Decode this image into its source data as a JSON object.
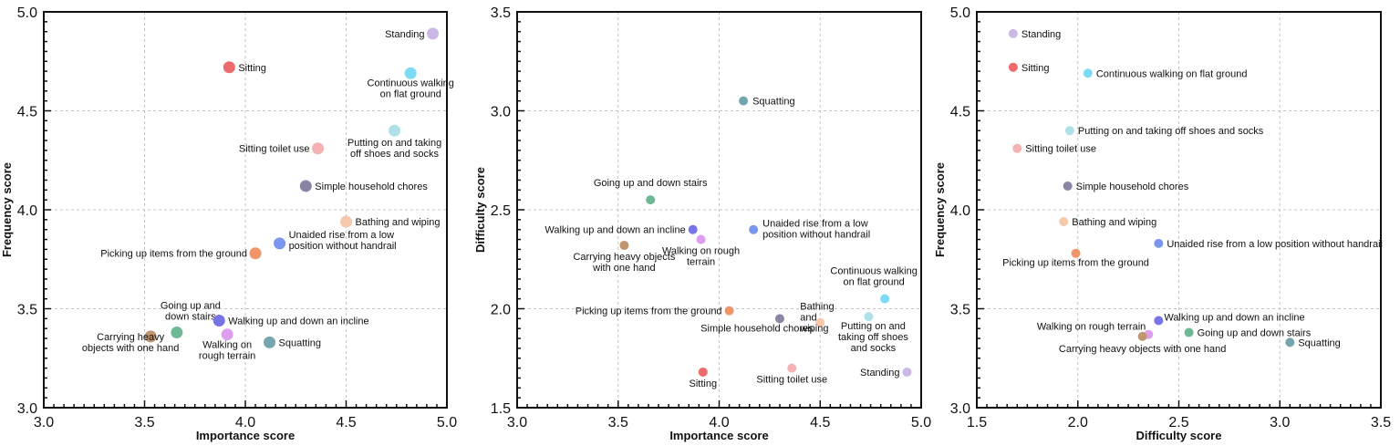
{
  "colors": {
    "Standing": "#cbb8e4",
    "Sitting": "#ef6b6b",
    "Continuous walking on flat ground": "#7ddcf4",
    "Putting on and taking off shoes and socks": "#b0e0e8",
    "Sitting toilet use": "#f5b2b2",
    "Simple household chores": "#8a85a4",
    "Bathing and wiping": "#f6c9ad",
    "Unaided rise from a low position without handrail": "#7b96ec",
    "Picking up items from the ground": "#f0956a",
    "Going up and down stairs": "#6db895",
    "Walking up and down an incline": "#7873e6",
    "Walking on rough terrain": "#de9ef0",
    "Squatting": "#75a6ad",
    "Carrying heavy objects with one hand": "#bf9670"
  },
  "chart_data": [
    {
      "type": "scatter",
      "xlabel": "Importance score",
      "ylabel": "Frequency score",
      "xlim": [
        3.0,
        5.0
      ],
      "ylim": [
        3.0,
        5.0
      ],
      "xticks": [
        "3.0",
        "3.5",
        "4.0",
        "4.5",
        "5.0"
      ],
      "yticks": [
        "3.0",
        "3.5",
        "4.0",
        "4.5",
        "5.0"
      ],
      "grid": true,
      "points": [
        {
          "item": "Standing",
          "label_lines": [
            "Standing"
          ],
          "x": 4.93,
          "y": 4.89
        },
        {
          "item": "Sitting",
          "label_lines": [
            "Sitting"
          ],
          "x": 3.92,
          "y": 4.72
        },
        {
          "item": "Continuous walking on flat ground",
          "label_lines": [
            "Continuous walking",
            "on flat ground"
          ],
          "x": 4.82,
          "y": 4.69
        },
        {
          "item": "Putting on and taking off shoes and socks",
          "label_lines": [
            "Putting on and taking",
            "off shoes and socks"
          ],
          "x": 4.74,
          "y": 4.4
        },
        {
          "item": "Sitting toilet use",
          "label_lines": [
            "Sitting toilet use"
          ],
          "x": 4.36,
          "y": 4.31
        },
        {
          "item": "Simple household chores",
          "label_lines": [
            "Simple household chores"
          ],
          "x": 4.3,
          "y": 4.12
        },
        {
          "item": "Bathing and wiping",
          "label_lines": [
            "Bathing and wiping"
          ],
          "x": 4.5,
          "y": 3.94
        },
        {
          "item": "Unaided rise from a low position without handrail",
          "label_lines": [
            "Unaided rise from a low",
            "position without handrail"
          ],
          "x": 4.17,
          "y": 3.83
        },
        {
          "item": "Picking up items from the ground",
          "label_lines": [
            "Picking up items from the ground"
          ],
          "x": 4.05,
          "y": 3.78
        },
        {
          "item": "Going up and down stairs",
          "label_lines": [
            "Going up and",
            "down stairs"
          ],
          "x": 3.66,
          "y": 3.38
        },
        {
          "item": "Walking up and down an incline",
          "label_lines": [
            "Walking up and down an incline"
          ],
          "x": 3.87,
          "y": 3.44
        },
        {
          "item": "Walking on rough terrain",
          "label_lines": [
            "Walking on",
            "rough terrain"
          ],
          "x": 3.91,
          "y": 3.37
        },
        {
          "item": "Squatting",
          "label_lines": [
            "Squatting"
          ],
          "x": 4.12,
          "y": 3.33
        },
        {
          "item": "Carrying heavy objects with one hand",
          "label_lines": [
            "Carrying heavy",
            "objects with one hand"
          ],
          "x": 3.53,
          "y": 3.36
        }
      ]
    },
    {
      "type": "scatter",
      "xlabel": "Importance score",
      "ylabel": "Difficulty score",
      "xlim": [
        3.0,
        5.0
      ],
      "ylim": [
        1.5,
        3.5
      ],
      "xticks": [
        "3.0",
        "3.5",
        "4.0",
        "4.5",
        "5.0"
      ],
      "yticks": [
        "1.5",
        "2.0",
        "2.5",
        "3.0",
        "3.5"
      ],
      "grid": true,
      "points": [
        {
          "item": "Squatting",
          "label_lines": [
            "Squatting"
          ],
          "x": 4.12,
          "y": 3.05
        },
        {
          "item": "Going up and down stairs",
          "label_lines": [
            "Going up and down stairs"
          ],
          "x": 3.66,
          "y": 2.55
        },
        {
          "item": "Walking up and down an incline",
          "label_lines": [
            "Walking up and down an incline"
          ],
          "x": 3.87,
          "y": 2.4
        },
        {
          "item": "Unaided rise from a low position without handrail",
          "label_lines": [
            "Unaided rise from a low",
            "position without handrail"
          ],
          "x": 4.17,
          "y": 2.4
        },
        {
          "item": "Walking on rough terrain",
          "label_lines": [
            "Walking on rough",
            "terrain"
          ],
          "x": 3.91,
          "y": 2.35
        },
        {
          "item": "Carrying heavy objects with one hand",
          "label_lines": [
            "Carrying heavy objects",
            "with one hand"
          ],
          "x": 3.53,
          "y": 2.32
        },
        {
          "item": "Continuous walking on flat ground",
          "label_lines": [
            "Continuous walking",
            "on flat ground"
          ],
          "x": 4.82,
          "y": 2.05
        },
        {
          "item": "Picking up items from the ground",
          "label_lines": [
            "Picking up items from the ground"
          ],
          "x": 4.05,
          "y": 1.99
        },
        {
          "item": "Putting on and taking off shoes and socks",
          "label_lines": [
            "Putting on and",
            "taking off shoes",
            "and socks"
          ],
          "x": 4.74,
          "y": 1.96
        },
        {
          "item": "Simple household chores",
          "label_lines": [
            "Simple household chores"
          ],
          "x": 4.3,
          "y": 1.95
        },
        {
          "item": "Bathing and wiping",
          "label_lines": [
            "Bathing",
            "and",
            "wiping"
          ],
          "x": 4.5,
          "y": 1.93
        },
        {
          "item": "Sitting toilet use",
          "label_lines": [
            "Sitting toilet use"
          ],
          "x": 4.36,
          "y": 1.7
        },
        {
          "item": "Sitting",
          "label_lines": [
            "Sitting"
          ],
          "x": 3.92,
          "y": 1.68
        },
        {
          "item": "Standing",
          "label_lines": [
            "Standing"
          ],
          "x": 4.93,
          "y": 1.68
        }
      ]
    },
    {
      "type": "scatter",
      "xlabel": "Difficulty score",
      "ylabel": "Frequency score",
      "xlim": [
        1.5,
        3.5
      ],
      "ylim": [
        3.0,
        5.0
      ],
      "xticks": [
        "1.5",
        "2.0",
        "2.5",
        "3.0",
        "3.5"
      ],
      "yticks": [
        "3.0",
        "3.5",
        "4.0",
        "4.5",
        "5.0"
      ],
      "grid": true,
      "points": [
        {
          "item": "Standing",
          "label_lines": [
            "Standing"
          ],
          "x": 1.68,
          "y": 4.89
        },
        {
          "item": "Sitting",
          "label_lines": [
            "Sitting"
          ],
          "x": 1.68,
          "y": 4.72
        },
        {
          "item": "Continuous walking on flat ground",
          "label_lines": [
            "Continuous walking on flat ground"
          ],
          "x": 2.05,
          "y": 4.69
        },
        {
          "item": "Putting on and taking off shoes and socks",
          "label_lines": [
            "Putting on and taking off shoes and socks"
          ],
          "x": 1.96,
          "y": 4.4
        },
        {
          "item": "Sitting toilet use",
          "label_lines": [
            "Sitting toilet use"
          ],
          "x": 1.7,
          "y": 4.31
        },
        {
          "item": "Simple household chores",
          "label_lines": [
            "Simple household chores"
          ],
          "x": 1.95,
          "y": 4.12
        },
        {
          "item": "Bathing and wiping",
          "label_lines": [
            "Bathing and wiping"
          ],
          "x": 1.93,
          "y": 3.94
        },
        {
          "item": "Unaided rise from a low position without handrail",
          "label_lines": [
            "Unaided rise from a low position without handrail"
          ],
          "x": 2.4,
          "y": 3.83
        },
        {
          "item": "Picking up items from the ground",
          "label_lines": [
            "Picking up items from the ground"
          ],
          "x": 1.99,
          "y": 3.78
        },
        {
          "item": "Walking up and down an incline",
          "label_lines": [
            "Walking up and down an incline"
          ],
          "x": 2.4,
          "y": 3.44
        },
        {
          "item": "Going up and down stairs",
          "label_lines": [
            "Going up and down stairs"
          ],
          "x": 2.55,
          "y": 3.38
        },
        {
          "item": "Walking on rough terrain",
          "label_lines": [
            "Walking on rough terrain"
          ],
          "x": 2.35,
          "y": 3.37
        },
        {
          "item": "Carrying heavy objects with one hand",
          "label_lines": [
            "Carrying heavy objects with one hand"
          ],
          "x": 2.32,
          "y": 3.36
        },
        {
          "item": "Squatting",
          "label_lines": [
            "Squatting"
          ],
          "x": 3.05,
          "y": 3.33
        }
      ]
    }
  ]
}
